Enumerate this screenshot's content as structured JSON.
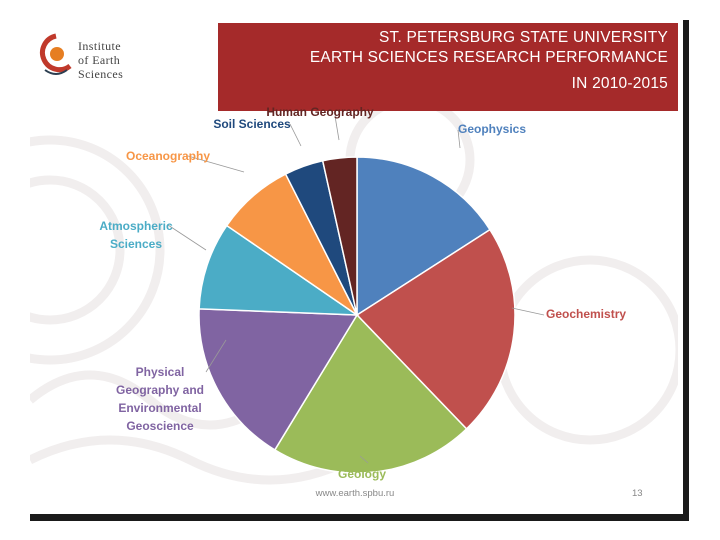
{
  "header": {
    "line1": "ST. PETERSBURG STATE UNIVERSITY",
    "line2": "EARTH SCIENCES RESEARCH PERFORMANCE",
    "line3": "IN 2010-2015"
  },
  "logo": {
    "line1": "Institute",
    "line2": "of Earth",
    "line3": "Sciences"
  },
  "footer": {
    "url": "www.earth.spbu.ru",
    "page": "13"
  },
  "chart_data": {
    "type": "pie",
    "title": "",
    "start_angle_deg": 0,
    "direction": "clockwise",
    "slices": [
      {
        "label": "Geophysics",
        "value": 16,
        "color": "#4f81bd"
      },
      {
        "label": "Geochemistry",
        "value": 22,
        "color": "#c0504d"
      },
      {
        "label": "Geology",
        "value": 21,
        "color": "#9bbb59"
      },
      {
        "label": "Physical Geography and Environmental Geoscience",
        "label_lines": [
          "Physical",
          "Geography and",
          "Environmental",
          "Geoscience"
        ],
        "value": 17,
        "color": "#8064a2"
      },
      {
        "label": "Atmospheric Sciences",
        "label_lines": [
          "Atmospheric",
          "Sciences"
        ],
        "value": 9,
        "color": "#4bacc6"
      },
      {
        "label": "Oceanography",
        "value": 8,
        "color": "#f79646"
      },
      {
        "label": "Soil Sciences",
        "value": 4,
        "color": "#1f497d"
      },
      {
        "label": "Human Geography",
        "value": 3.5,
        "color": "#632523"
      }
    ],
    "label_colors": {
      "Geophysics": "#4f81bd",
      "Geochemistry": "#c0504d",
      "Geology": "#9bbb59",
      "Physical Geography and Environmental Geoscience": "#8064a2",
      "Atmospheric Sciences": "#4bacc6",
      "Oceanography": "#f79646",
      "Soil Sciences": "#1f497d",
      "Human Geography": "#632523"
    }
  }
}
